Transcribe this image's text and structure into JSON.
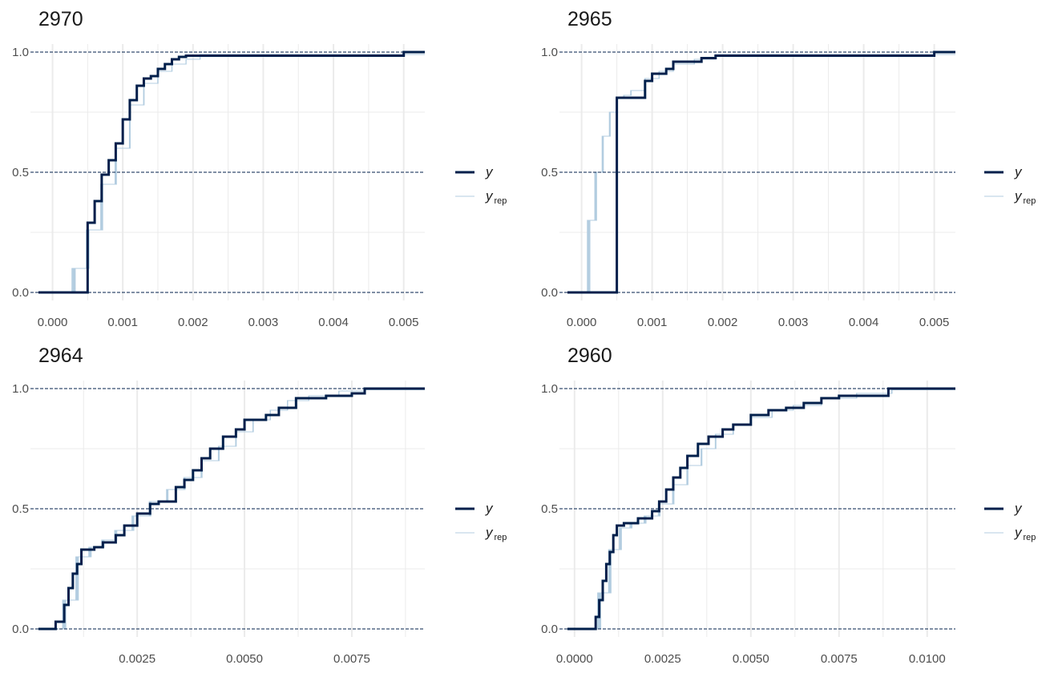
{
  "colors": {
    "y": "#011f4b",
    "yrep": "#b3cde0",
    "grid": "#ebebeb",
    "ref": "#011f4b"
  },
  "legend": {
    "y_label": "y",
    "yrep_main": "y",
    "yrep_sub": "rep"
  },
  "chart_data": [
    {
      "type": "line",
      "subtype": "ecdf-step",
      "title": "2970",
      "xlim": [
        -0.0002,
        0.0053
      ],
      "ylim": [
        0,
        1
      ],
      "x_ticks": [
        "0.000",
        "0.001",
        "0.002",
        "0.003",
        "0.004",
        "0.005"
      ],
      "x_tick_values": [
        0,
        0.001,
        0.002,
        0.003,
        0.004,
        0.005
      ],
      "y_ticks": [
        "0.0",
        "0.5",
        "1.0"
      ],
      "reference_lines": [
        0,
        0.5,
        1
      ],
      "grid": true,
      "series": [
        {
          "name": "y",
          "x": [
            -0.0002,
            0.0005,
            0.0005,
            0.0006,
            0.0007,
            0.0008,
            0.0009,
            0.001,
            0.00105,
            0.0011,
            0.0012,
            0.0013,
            0.0014,
            0.0015,
            0.0016,
            0.0017,
            0.0018,
            0.0019,
            0.002,
            0.005,
            0.0053
          ],
          "y": [
            0,
            0,
            0.29,
            0.38,
            0.49,
            0.55,
            0.62,
            0.72,
            0.72,
            0.8,
            0.86,
            0.89,
            0.9,
            0.93,
            0.95,
            0.97,
            0.98,
            0.985,
            0.985,
            1,
            1
          ]
        },
        {
          "name": "yrep",
          "x": [
            0.00015,
            0.0003,
            0.0005,
            0.0007,
            0.0009,
            0.0011,
            0.0013,
            0.0015,
            0.0017,
            0.0019,
            0.0021,
            0.0053
          ],
          "y": [
            0,
            0.1,
            0.26,
            0.45,
            0.6,
            0.78,
            0.87,
            0.92,
            0.95,
            0.97,
            0.99,
            0.99
          ]
        }
      ]
    },
    {
      "type": "line",
      "subtype": "ecdf-step",
      "title": "2965",
      "xlim": [
        -0.0002,
        0.0053
      ],
      "ylim": [
        0,
        1
      ],
      "x_ticks": [
        "0.000",
        "0.001",
        "0.002",
        "0.003",
        "0.004",
        "0.005"
      ],
      "x_tick_values": [
        0,
        0.001,
        0.002,
        0.003,
        0.004,
        0.005
      ],
      "y_ticks": [
        "0.0",
        "0.5",
        "1.0"
      ],
      "reference_lines": [
        0,
        0.5,
        1
      ],
      "grid": true,
      "series": [
        {
          "name": "y",
          "x": [
            -0.0002,
            0.0005,
            0.0005,
            0.0008,
            0.0009,
            0.001,
            0.0012,
            0.0013,
            0.0017,
            0.0019,
            0.005,
            0.0053
          ],
          "y": [
            0,
            0,
            0.81,
            0.81,
            0.88,
            0.91,
            0.93,
            0.96,
            0.975,
            0.985,
            1,
            1
          ]
        },
        {
          "name": "yrep",
          "x": [
            0.0,
            0.0001,
            0.0002,
            0.0003,
            0.0004,
            0.0005,
            0.0006,
            0.0007,
            0.0009,
            0.0011,
            0.0013,
            0.0016,
            0.0019,
            0.0053
          ],
          "y": [
            0,
            0.3,
            0.5,
            0.65,
            0.75,
            0.81,
            0.82,
            0.84,
            0.89,
            0.92,
            0.95,
            0.97,
            0.99,
            0.99
          ]
        }
      ]
    },
    {
      "type": "line",
      "subtype": "ecdf-step",
      "title": "2964",
      "xlim": [
        0.0002,
        0.0092
      ],
      "ylim": [
        0,
        1
      ],
      "x_ticks": [
        "0.0025",
        "0.0050",
        "0.0075"
      ],
      "x_tick_values": [
        0.0025,
        0.005,
        0.0075
      ],
      "y_ticks": [
        "0.0",
        "0.5",
        "1.0"
      ],
      "reference_lines": [
        0,
        0.5,
        1
      ],
      "grid": true,
      "series": [
        {
          "name": "y",
          "x": [
            0.0002,
            0.0005,
            0.0006,
            0.0008,
            0.0009,
            0.001,
            0.0011,
            0.0012,
            0.0015,
            0.0017,
            0.002,
            0.0022,
            0.0025,
            0.0028,
            0.003,
            0.0034,
            0.0036,
            0.0038,
            0.004,
            0.0042,
            0.0045,
            0.0048,
            0.005,
            0.0055,
            0.0058,
            0.0062,
            0.0069,
            0.0075,
            0.0078,
            0.0092
          ],
          "y": [
            0,
            0,
            0.03,
            0.1,
            0.17,
            0.23,
            0.27,
            0.33,
            0.34,
            0.36,
            0.39,
            0.43,
            0.48,
            0.52,
            0.53,
            0.59,
            0.62,
            0.66,
            0.71,
            0.75,
            0.8,
            0.83,
            0.87,
            0.89,
            0.92,
            0.96,
            0.97,
            0.98,
            1,
            1
          ]
        },
        {
          "name": "yrep",
          "x": [
            0.0005,
            0.0008,
            0.0011,
            0.0014,
            0.0017,
            0.002,
            0.0024,
            0.0028,
            0.0032,
            0.0036,
            0.004,
            0.0044,
            0.0048,
            0.0052,
            0.0056,
            0.006,
            0.0065,
            0.0072,
            0.0078,
            0.0092
          ],
          "y": [
            0,
            0.12,
            0.3,
            0.34,
            0.37,
            0.41,
            0.47,
            0.53,
            0.58,
            0.63,
            0.7,
            0.76,
            0.82,
            0.87,
            0.91,
            0.95,
            0.97,
            0.99,
            0.995,
            0.995
          ]
        }
      ]
    },
    {
      "type": "line",
      "subtype": "ecdf-step",
      "title": "2960",
      "xlim": [
        -0.0002,
        0.0108
      ],
      "ylim": [
        0,
        1
      ],
      "x_ticks": [
        "0.0000",
        "0.0025",
        "0.0050",
        "0.0075",
        "0.0100"
      ],
      "x_tick_values": [
        0,
        0.0025,
        0.005,
        0.0075,
        0.01
      ],
      "y_ticks": [
        "0.0",
        "0.5",
        "1.0"
      ],
      "reference_lines": [
        0,
        0.5,
        1
      ],
      "grid": true,
      "series": [
        {
          "name": "y",
          "x": [
            -0.0002,
            0.0005,
            0.0006,
            0.0007,
            0.0008,
            0.0009,
            0.001,
            0.0011,
            0.0012,
            0.0014,
            0.0018,
            0.0022,
            0.0024,
            0.0026,
            0.0028,
            0.003,
            0.0032,
            0.0035,
            0.0038,
            0.0042,
            0.0045,
            0.005,
            0.0055,
            0.006,
            0.0065,
            0.007,
            0.0075,
            0.0089,
            0.0108
          ],
          "y": [
            0,
            0,
            0.05,
            0.12,
            0.2,
            0.27,
            0.32,
            0.39,
            0.43,
            0.44,
            0.46,
            0.49,
            0.53,
            0.58,
            0.63,
            0.67,
            0.72,
            0.77,
            0.8,
            0.83,
            0.85,
            0.89,
            0.91,
            0.92,
            0.94,
            0.96,
            0.97,
            1,
            1
          ]
        },
        {
          "name": "yrep",
          "x": [
            0.0004,
            0.0007,
            0.001,
            0.0013,
            0.0016,
            0.002,
            0.0024,
            0.0028,
            0.0032,
            0.0036,
            0.004,
            0.0045,
            0.005,
            0.0056,
            0.0062,
            0.007,
            0.008,
            0.009,
            0.0108
          ],
          "y": [
            0,
            0.15,
            0.33,
            0.42,
            0.44,
            0.47,
            0.52,
            0.6,
            0.68,
            0.75,
            0.81,
            0.85,
            0.88,
            0.91,
            0.93,
            0.96,
            0.98,
            0.995,
            0.995
          ]
        }
      ]
    }
  ]
}
